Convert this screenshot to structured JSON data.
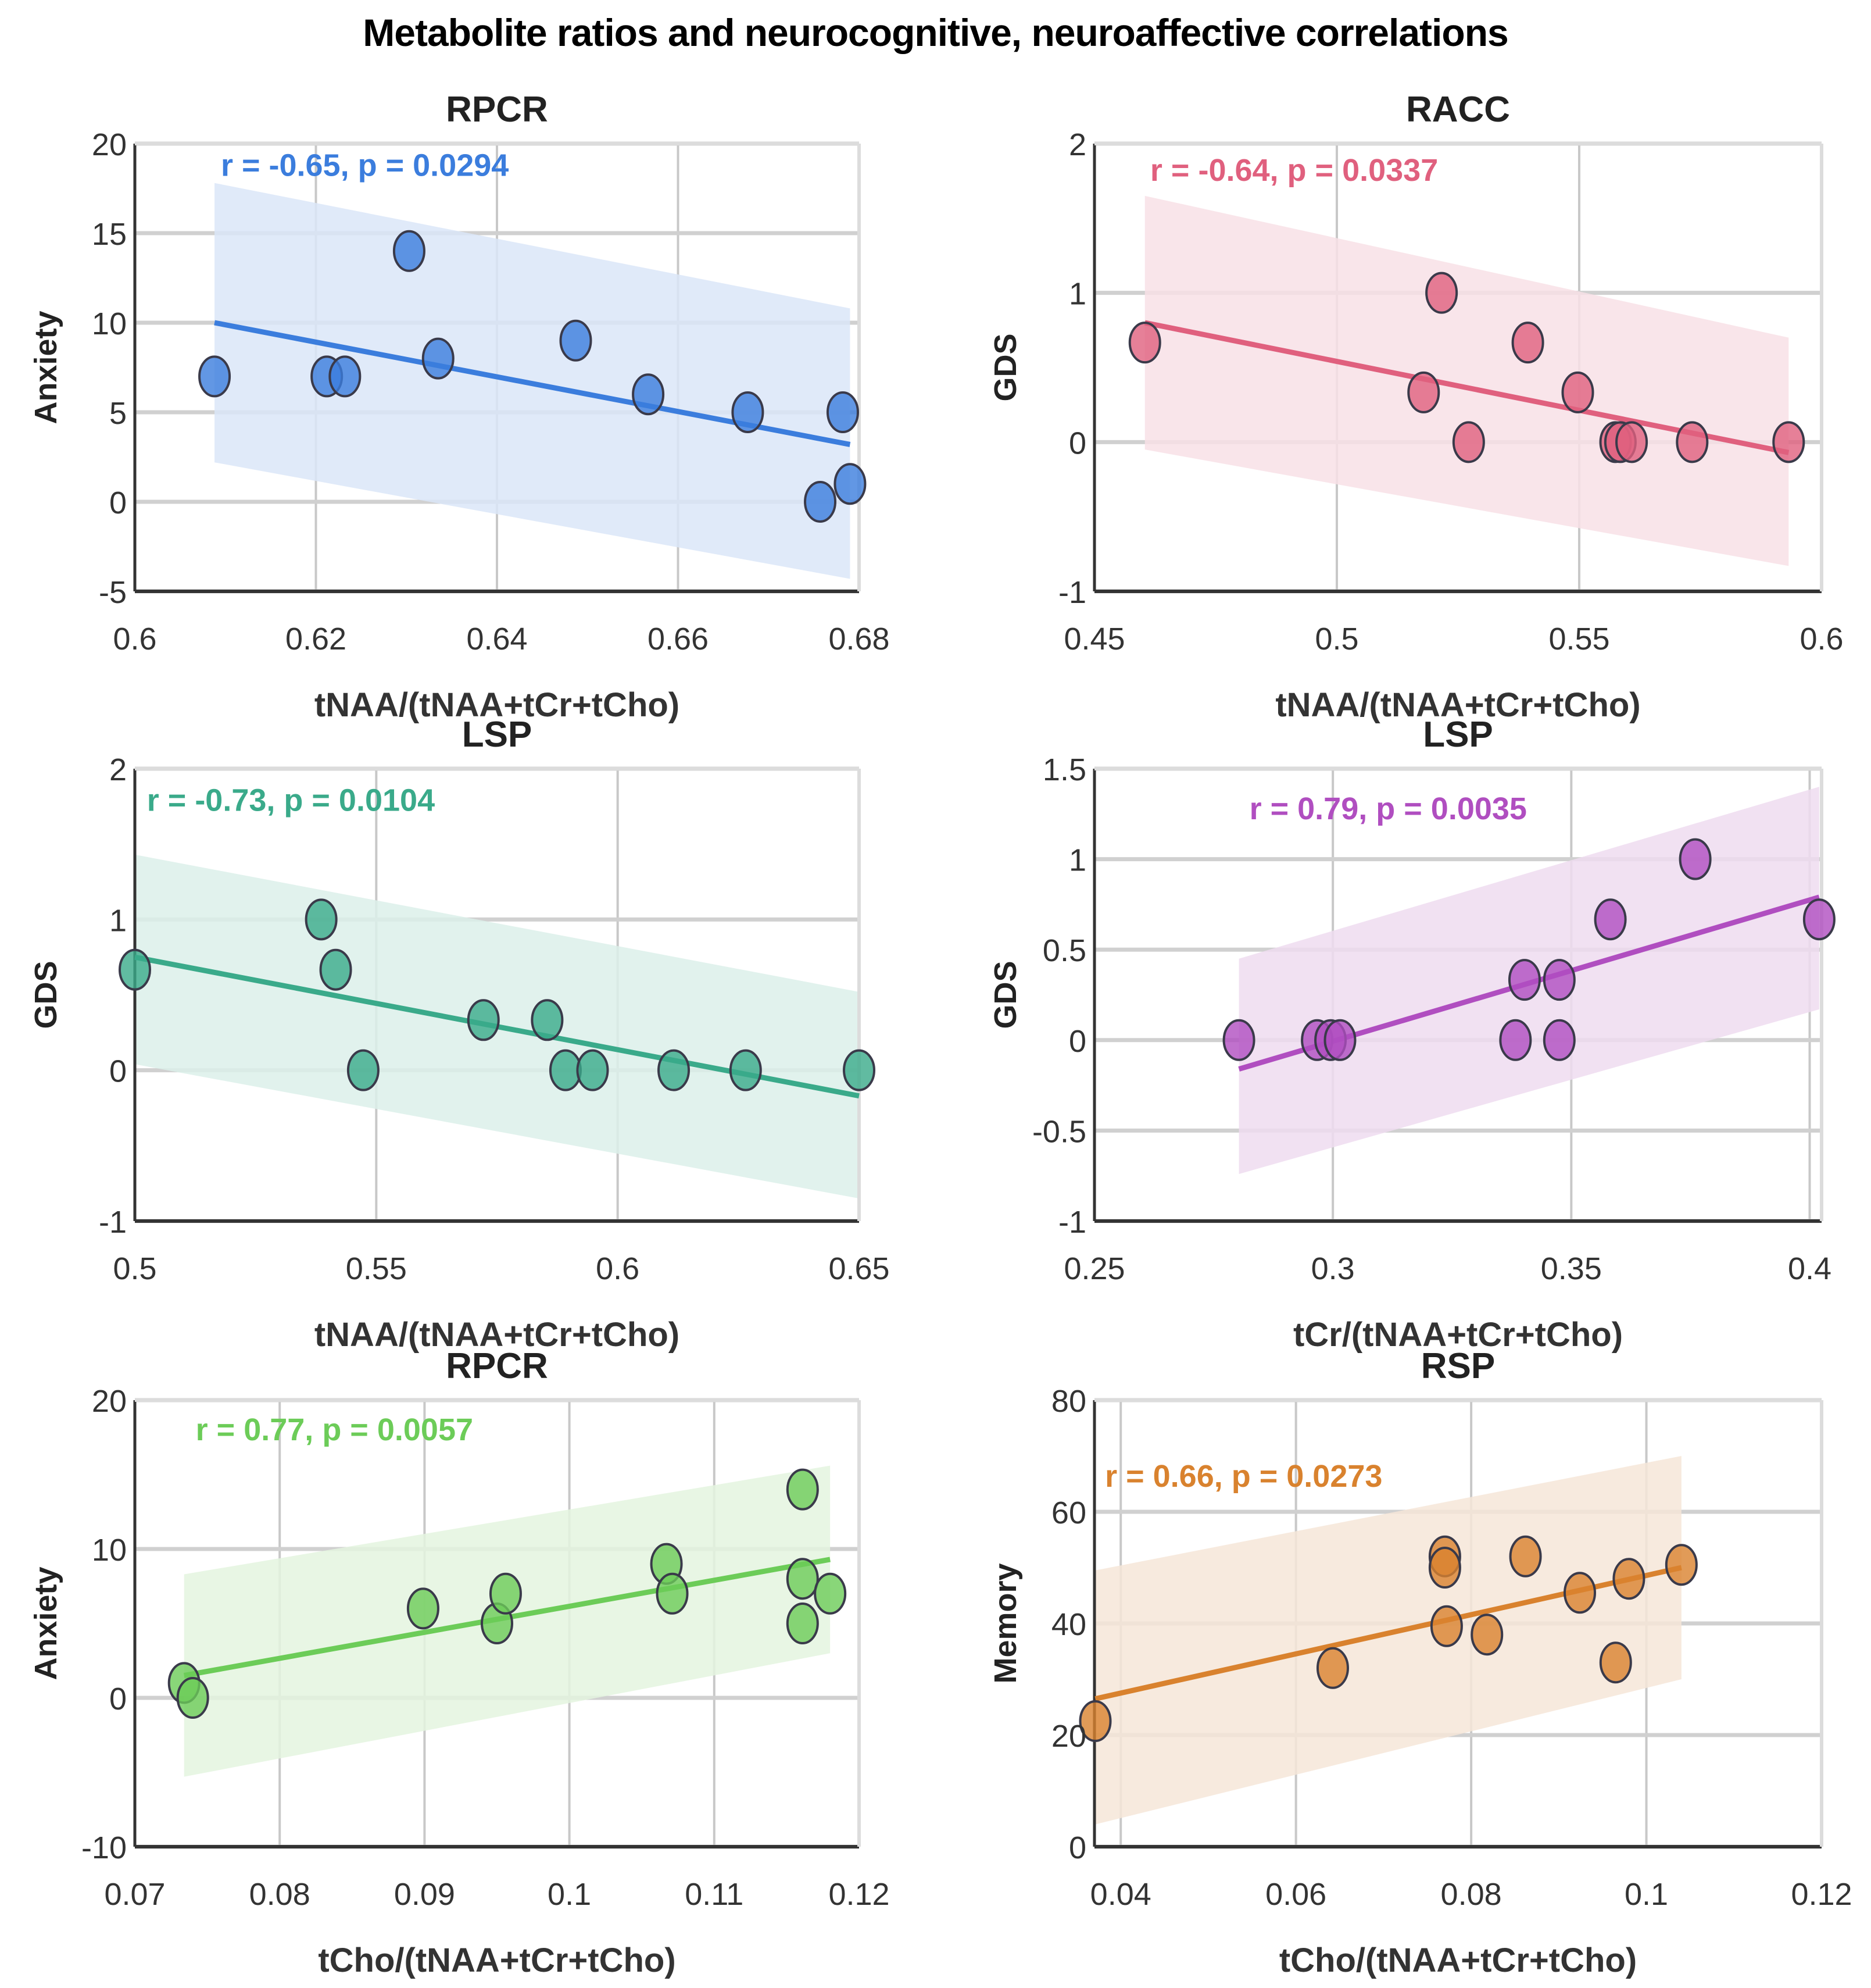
{
  "figure_title": "Metabolite ratios and neurocognitive, neuroaffective correlations",
  "chart_data": [
    {
      "type": "scatter",
      "title": "RPCR",
      "xlabel": "tNAA/(tNAA+tCr+tCho)",
      "ylabel": "Anxiety",
      "xlim": [
        0.6,
        0.68
      ],
      "ylim": [
        -5,
        20
      ],
      "xticks": [
        "0.6",
        "0.62",
        "0.64",
        "0.66",
        "0.68"
      ],
      "xtick_values": [
        0.6,
        0.62,
        0.64,
        0.66,
        0.68
      ],
      "yticks": [
        "-5",
        "0",
        "5",
        "10",
        "15",
        "20"
      ],
      "ytick_values": [
        -5,
        0,
        5,
        10,
        15,
        20
      ],
      "grid": true,
      "color": "#3b7ddd",
      "fill_color": "#dbe6f8",
      "annotation": "r = -0.65, p = 0.0294",
      "annotation_pos": [
        0.6095,
        18.2
      ],
      "points": [
        [
          0.6088,
          7
        ],
        [
          0.6212,
          7
        ],
        [
          0.6232,
          7
        ],
        [
          0.6303,
          14
        ],
        [
          0.6335,
          8
        ],
        [
          0.6487,
          9
        ],
        [
          0.6567,
          6
        ],
        [
          0.6677,
          5
        ],
        [
          0.6782,
          5
        ],
        [
          0.6757,
          0
        ],
        [
          0.679,
          1
        ]
      ],
      "fit": {
        "x": [
          0.6088,
          0.679
        ],
        "y": [
          10.0,
          3.2
        ]
      },
      "ci": {
        "x": [
          0.6088,
          0.679
        ],
        "upper": [
          17.8,
          10.8
        ],
        "lower": [
          2.2,
          -4.3
        ]
      }
    },
    {
      "type": "scatter",
      "title": "RACC",
      "xlabel": "tNAA/(tNAA+tCr+tCho)",
      "ylabel": "GDS",
      "xlim": [
        0.45,
        0.6
      ],
      "ylim": [
        -1,
        2
      ],
      "xticks": [
        "0.45",
        "0.5",
        "0.55",
        "0.6"
      ],
      "xtick_values": [
        0.45,
        0.5,
        0.55,
        0.6
      ],
      "yticks": [
        "-1",
        "0",
        "1",
        "2"
      ],
      "ytick_values": [
        -1,
        0,
        1,
        2
      ],
      "grid": true,
      "color": "#e0607e",
      "fill_color": "#f8e0e6",
      "annotation": "r = -0.64, p = 0.0337",
      "annotation_pos": [
        0.4615,
        1.75
      ],
      "points": [
        [
          0.4604,
          0.667
        ],
        [
          0.5216,
          1
        ],
        [
          0.5179,
          0.333
        ],
        [
          0.5272,
          0
        ],
        [
          0.5394,
          0.667
        ],
        [
          0.5497,
          0.333
        ],
        [
          0.5575,
          0
        ],
        [
          0.5585,
          0
        ],
        [
          0.5608,
          0
        ],
        [
          0.5733,
          0
        ],
        [
          0.5932,
          0
        ]
      ],
      "fit": {
        "x": [
          0.4604,
          0.5932
        ],
        "y": [
          0.8,
          -0.07
        ]
      },
      "ci": {
        "x": [
          0.4604,
          0.5932
        ],
        "upper": [
          1.65,
          0.7
        ],
        "lower": [
          -0.05,
          -0.83
        ]
      }
    },
    {
      "type": "scatter",
      "title": "LSP",
      "xlabel": "tNAA/(tNAA+tCr+tCho)",
      "ylabel": "GDS",
      "xlim": [
        0.5,
        0.65
      ],
      "ylim": [
        -1,
        2
      ],
      "xticks": [
        "0.5",
        "0.55",
        "0.6",
        "0.65"
      ],
      "xtick_values": [
        0.5,
        0.55,
        0.6,
        0.65
      ],
      "yticks": [
        "-1",
        "0",
        "1",
        "2"
      ],
      "ytick_values": [
        -1,
        0,
        1,
        2
      ],
      "grid": true,
      "color": "#3aaa8a",
      "fill_color": "#dcf0ea",
      "annotation": "r = -0.73, p = 0.0104",
      "annotation_pos": [
        0.5025,
        1.72
      ],
      "points": [
        [
          0.5,
          0.667
        ],
        [
          0.5386,
          1
        ],
        [
          0.5416,
          0.667
        ],
        [
          0.5473,
          0
        ],
        [
          0.5722,
          0.333
        ],
        [
          0.5854,
          0.333
        ],
        [
          0.5892,
          0
        ],
        [
          0.5948,
          0
        ],
        [
          0.6116,
          0
        ],
        [
          0.6265,
          0
        ],
        [
          0.65,
          0
        ]
      ],
      "fit": {
        "x": [
          0.5,
          0.65
        ],
        "y": [
          0.75,
          -0.17
        ]
      },
      "ci": {
        "x": [
          0.5,
          0.65
        ],
        "upper": [
          1.43,
          0.52
        ],
        "lower": [
          0.04,
          -0.85
        ]
      }
    },
    {
      "type": "scatter",
      "title": "LSP",
      "xlabel": "tCr/(tNAA+tCr+tCho)",
      "ylabel": "GDS",
      "xlim": [
        0.25,
        0.4025
      ],
      "ylim": [
        -1,
        1.5
      ],
      "xticks": [
        "0.25",
        "0.3",
        "0.35",
        "0.4"
      ],
      "xtick_values": [
        0.25,
        0.3,
        0.35,
        0.4
      ],
      "yticks": [
        "-1",
        "-0.5",
        "0",
        "0.5",
        "1",
        "1.5"
      ],
      "ytick_values": [
        -1,
        -0.5,
        0,
        0.5,
        1,
        1.5
      ],
      "grid": true,
      "color": "#b04ec0",
      "fill_color": "#efdcf0",
      "annotation": "r = 0.79, p = 0.0035",
      "annotation_pos": [
        0.2825,
        1.22
      ],
      "points": [
        [
          0.2803,
          0
        ],
        [
          0.2967,
          0
        ],
        [
          0.2995,
          0
        ],
        [
          0.3015,
          0
        ],
        [
          0.3383,
          0
        ],
        [
          0.3402,
          0.333
        ],
        [
          0.3475,
          0.333
        ],
        [
          0.3475,
          0
        ],
        [
          0.3582,
          0.667
        ],
        [
          0.376,
          1
        ],
        [
          0.402,
          0.667
        ]
      ],
      "fit": {
        "x": [
          0.2803,
          0.402
        ],
        "y": [
          -0.16,
          0.79
        ]
      },
      "ci": {
        "x": [
          0.2803,
          0.402
        ],
        "upper": [
          0.45,
          1.4
        ],
        "lower": [
          -0.74,
          0.17
        ]
      }
    },
    {
      "type": "scatter",
      "title": "RPCR",
      "xlabel": "tCho/(tNAA+tCr+tCho)",
      "ylabel": "Anxiety",
      "xlim": [
        0.07,
        0.12
      ],
      "ylim": [
        -10,
        20
      ],
      "xticks": [
        "0.07",
        "0.08",
        "0.09",
        "0.1",
        "0.11",
        "0.12"
      ],
      "xtick_values": [
        0.07,
        0.08,
        0.09,
        0.1,
        0.11,
        0.12
      ],
      "yticks": [
        "-10",
        "0",
        "10",
        "20"
      ],
      "ytick_values": [
        -10,
        0,
        10,
        20
      ],
      "grid": true,
      "color": "#6ccc58",
      "fill_color": "#e4f4df",
      "annotation": "r = 0.77, p = 0.0057",
      "annotation_pos": [
        0.0742,
        17.3
      ],
      "points": [
        [
          0.0734,
          1
        ],
        [
          0.074,
          0
        ],
        [
          0.0899,
          6
        ],
        [
          0.095,
          5
        ],
        [
          0.0956,
          7
        ],
        [
          0.1067,
          9
        ],
        [
          0.1071,
          7
        ],
        [
          0.1161,
          14
        ],
        [
          0.1161,
          8
        ],
        [
          0.1161,
          5
        ],
        [
          0.118,
          7
        ]
      ],
      "fit": {
        "x": [
          0.0734,
          0.118
        ],
        "y": [
          1.5,
          9.3
        ]
      },
      "ci": {
        "x": [
          0.0734,
          0.118
        ],
        "upper": [
          8.3,
          15.6
        ],
        "lower": [
          -5.3,
          3.0
        ]
      }
    },
    {
      "type": "scatter",
      "title": "RSP",
      "xlabel": "tCho/(tNAA+tCr+tCho)",
      "ylabel": "Memory",
      "xlim": [
        0.037,
        0.12
      ],
      "ylim": [
        0,
        80
      ],
      "xticks": [
        "0.04",
        "0.06",
        "0.08",
        "0.1",
        "0.12"
      ],
      "xtick_values": [
        0.04,
        0.06,
        0.08,
        0.1,
        0.12
      ],
      "yticks": [
        "0",
        "20",
        "40",
        "60",
        "80"
      ],
      "ytick_values": [
        0,
        20,
        40,
        60,
        80
      ],
      "grid": true,
      "color": "#d9822e",
      "fill_color": "#f6e6d8",
      "annotation": "r = 0.66, p = 0.0273",
      "annotation_pos": [
        0.0382,
        64.5
      ],
      "points": [
        [
          0.0371,
          22.5
        ],
        [
          0.0642,
          32
        ],
        [
          0.077,
          52
        ],
        [
          0.077,
          50
        ],
        [
          0.0772,
          39.5
        ],
        [
          0.0818,
          38
        ],
        [
          0.0862,
          52
        ],
        [
          0.0924,
          45.5
        ],
        [
          0.0965,
          33
        ],
        [
          0.098,
          48
        ],
        [
          0.104,
          50.5
        ]
      ],
      "fit": {
        "x": [
          0.0371,
          0.104
        ],
        "y": [
          26.5,
          50.0
        ]
      },
      "ci": {
        "x": [
          0.0371,
          0.104
        ],
        "upper": [
          49.5,
          70.0
        ],
        "lower": [
          4.0,
          30.0
        ]
      }
    }
  ]
}
